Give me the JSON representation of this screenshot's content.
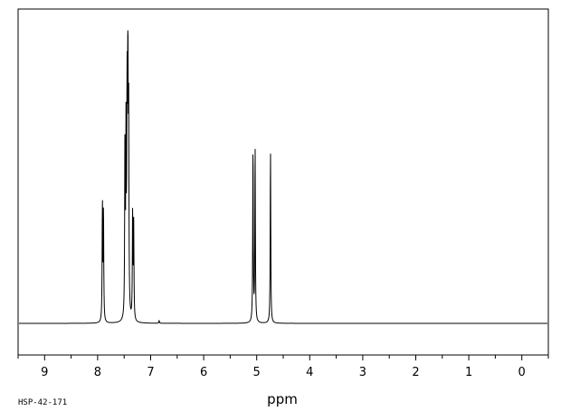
{
  "chart_data": {
    "type": "line",
    "xlabel": "ppm",
    "sample_id": "HSP-42-171",
    "xlim": [
      9.5,
      -0.5
    ],
    "x_reversed": true,
    "grid": false,
    "ticks": [
      9,
      8,
      7,
      6,
      5,
      4,
      3,
      2,
      1,
      0
    ],
    "tick_labels": [
      "9",
      "8",
      "7",
      "6",
      "5",
      "4",
      "3",
      "2",
      "1",
      "0"
    ],
    "minor_tick_step": 0.5,
    "ylim": [
      0,
      1.0
    ],
    "peaks": [
      {
        "ppm": 7.91,
        "intensity": 0.41
      },
      {
        "ppm": 7.89,
        "intensity": 0.39
      },
      {
        "ppm": 7.485,
        "intensity": 0.61
      },
      {
        "ppm": 7.465,
        "intensity": 0.62
      },
      {
        "ppm": 7.445,
        "intensity": 0.73
      },
      {
        "ppm": 7.43,
        "intensity": 1.0
      },
      {
        "ppm": 7.415,
        "intensity": 0.7
      },
      {
        "ppm": 7.34,
        "intensity": 0.38
      },
      {
        "ppm": 7.32,
        "intensity": 0.33
      },
      {
        "ppm": 6.84,
        "intensity": 0.01
      },
      {
        "ppm": 5.07,
        "intensity": 0.62
      },
      {
        "ppm": 5.03,
        "intensity": 0.61
      },
      {
        "ppm": 4.74,
        "intensity": 0.61
      }
    ]
  }
}
